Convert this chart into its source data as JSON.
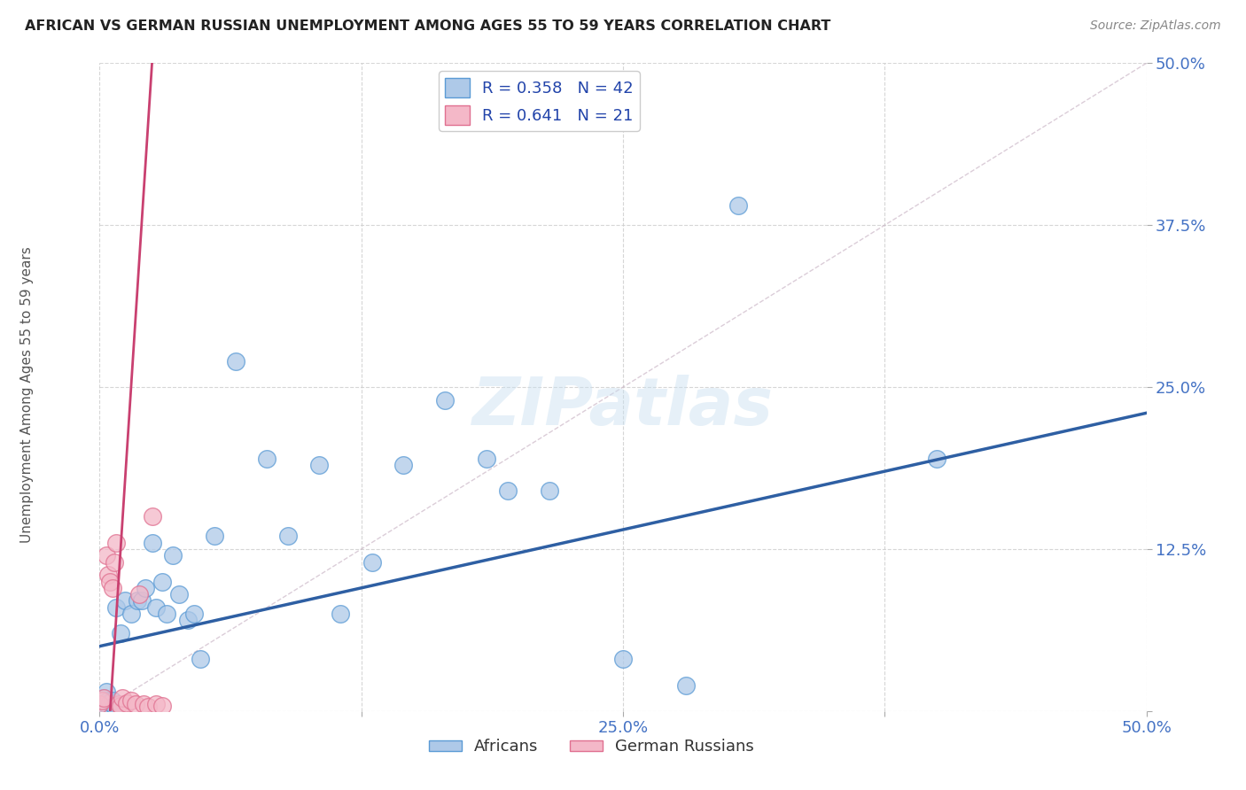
{
  "title": "AFRICAN VS GERMAN RUSSIAN UNEMPLOYMENT AMONG AGES 55 TO 59 YEARS CORRELATION CHART",
  "source": "Source: ZipAtlas.com",
  "ylabel": "Unemployment Among Ages 55 to 59 years",
  "xlim": [
    0.0,
    0.5
  ],
  "ylim": [
    0.0,
    0.5
  ],
  "xticks": [
    0.0,
    0.125,
    0.25,
    0.375,
    0.5
  ],
  "yticks": [
    0.0,
    0.125,
    0.25,
    0.375,
    0.5
  ],
  "xtick_labels": [
    "0.0%",
    "",
    "25.0%",
    "",
    "50.0%"
  ],
  "ytick_labels": [
    "",
    "12.5%",
    "25.0%",
    "37.5%",
    "50.0%"
  ],
  "african_color": "#aec9e8",
  "african_edge_color": "#5b9bd5",
  "german_russian_color": "#f4b8c8",
  "german_russian_edge_color": "#e07090",
  "african_R": 0.358,
  "african_N": 42,
  "german_russian_R": 0.641,
  "german_russian_N": 21,
  "blue_line_color": "#2e5fa3",
  "pink_line_color": "#c94070",
  "grid_color": "#cccccc",
  "blue_line_start_y": 0.05,
  "blue_line_end_y": 0.23,
  "pink_line_x0": 0.005,
  "pink_line_y0": 0.0,
  "pink_line_x1": 0.025,
  "pink_line_y1": 0.5,
  "africans_x": [
    0.0,
    0.001,
    0.002,
    0.002,
    0.003,
    0.004,
    0.004,
    0.005,
    0.006,
    0.007,
    0.008,
    0.01,
    0.012,
    0.015,
    0.018,
    0.02,
    0.022,
    0.025,
    0.027,
    0.03,
    0.032,
    0.035,
    0.038,
    0.042,
    0.045,
    0.048,
    0.055,
    0.065,
    0.08,
    0.09,
    0.105,
    0.115,
    0.13,
    0.145,
    0.165,
    0.185,
    0.195,
    0.215,
    0.25,
    0.28,
    0.305,
    0.4
  ],
  "africans_y": [
    0.005,
    0.008,
    0.01,
    0.005,
    0.015,
    0.004,
    0.008,
    0.007,
    0.008,
    0.004,
    0.08,
    0.06,
    0.085,
    0.075,
    0.085,
    0.085,
    0.095,
    0.13,
    0.08,
    0.1,
    0.075,
    0.12,
    0.09,
    0.07,
    0.075,
    0.04,
    0.135,
    0.27,
    0.195,
    0.135,
    0.19,
    0.075,
    0.115,
    0.19,
    0.24,
    0.195,
    0.17,
    0.17,
    0.04,
    0.02,
    0.39,
    0.195
  ],
  "german_russians_x": [
    0.0,
    0.001,
    0.002,
    0.003,
    0.004,
    0.005,
    0.006,
    0.007,
    0.008,
    0.009,
    0.01,
    0.011,
    0.013,
    0.015,
    0.017,
    0.019,
    0.021,
    0.023,
    0.025,
    0.027,
    0.03
  ],
  "german_russians_y": [
    0.005,
    0.008,
    0.01,
    0.12,
    0.105,
    0.1,
    0.095,
    0.115,
    0.13,
    0.005,
    0.004,
    0.01,
    0.006,
    0.008,
    0.005,
    0.09,
    0.005,
    0.003,
    0.15,
    0.005,
    0.004
  ]
}
